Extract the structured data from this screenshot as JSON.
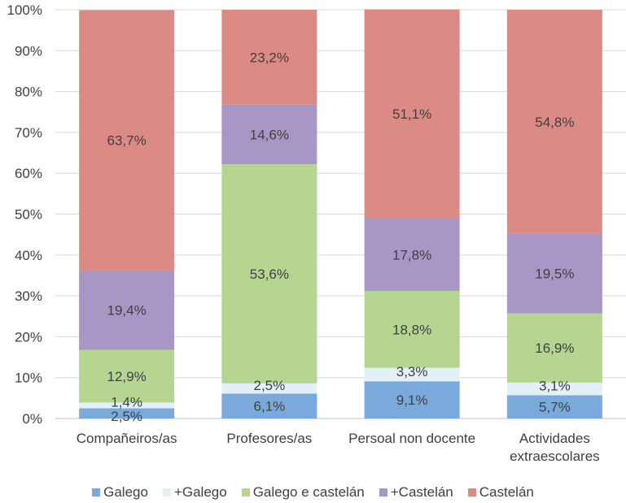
{
  "chart_data": {
    "type": "bar",
    "stacked": true,
    "percent": true,
    "categories": [
      [
        "Compañeiros/as"
      ],
      [
        "Profesores/as"
      ],
      [
        "Persoal non docente"
      ],
      [
        "Actividades",
        "extraescolares"
      ]
    ],
    "series": [
      {
        "name": "Galego",
        "color": "#7aaadb",
        "values": [
          2.5,
          6.1,
          9.1,
          5.7
        ],
        "labels": [
          "2,5%",
          "6,1%",
          "9,1%",
          "5,7%"
        ]
      },
      {
        "name": "+Galego",
        "color": "#e4f0f8",
        "values": [
          1.4,
          2.5,
          3.3,
          3.1
        ],
        "labels": [
          "1,4%",
          "2,5%",
          "3,3%",
          "3,1%"
        ]
      },
      {
        "name": "Galego e castelán",
        "color": "#b5d590",
        "values": [
          12.9,
          53.6,
          18.8,
          16.9
        ],
        "labels": [
          "12,9%",
          "53,6%",
          "18,8%",
          "16,9%"
        ]
      },
      {
        "name": "+Castelán",
        "color": "#a897c6",
        "values": [
          19.4,
          14.6,
          17.8,
          19.5
        ],
        "labels": [
          "19,4%",
          "14,6%",
          "17,8%",
          "19,5%"
        ]
      },
      {
        "name": "Castelán",
        "color": "#dc8a86",
        "values": [
          63.7,
          23.2,
          51.1,
          54.8
        ],
        "labels": [
          "63,7%",
          "23,2%",
          "51,1%",
          "54,8%"
        ]
      }
    ],
    "yticks": [
      "0%",
      "10%",
      "20%",
      "30%",
      "40%",
      "50%",
      "60%",
      "70%",
      "80%",
      "90%",
      "100%"
    ],
    "ylim": [
      0,
      100
    ],
    "grid": true,
    "legend_position": "bottom"
  }
}
